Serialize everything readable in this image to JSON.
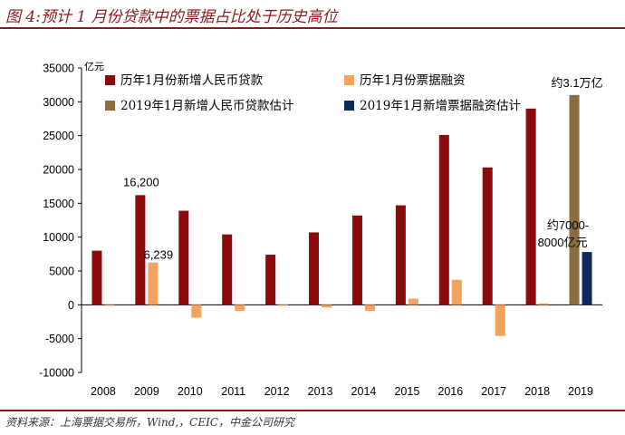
{
  "title": "图 4:预计 1 月份贷款中的票据占比处于历史高位",
  "source": "资料来源：上海票据交易所，Wind,，CEIC，中金公司研究",
  "chart_data": {
    "type": "bar",
    "unit": "亿元",
    "categories": [
      "2008",
      "2009",
      "2010",
      "2011",
      "2012",
      "2013",
      "2014",
      "2015",
      "2016",
      "2017",
      "2018",
      "2019"
    ],
    "ylim": [
      -10000,
      35000
    ],
    "yticks": [
      -10000,
      -5000,
      0,
      5000,
      10000,
      15000,
      20000,
      25000,
      30000,
      35000
    ],
    "legend_position": "top",
    "series": [
      {
        "name": "历年1月份新增人民币贷款",
        "color": "#8b0a0a",
        "values": [
          8000,
          16200,
          13900,
          10400,
          7400,
          10700,
          13200,
          14700,
          25100,
          20300,
          29000,
          null
        ]
      },
      {
        "name": "历年1月份票据融资",
        "color": "#f5a25d",
        "values": [
          100,
          6239,
          -1900,
          -900,
          0,
          -400,
          -900,
          900,
          3700,
          -4600,
          200,
          null
        ]
      },
      {
        "name": "2019年1月新增人民币贷款估计",
        "color": "#8c6d3f",
        "values": [
          null,
          null,
          null,
          null,
          null,
          null,
          null,
          null,
          null,
          null,
          null,
          31000
        ]
      },
      {
        "name": "2019年1月新增票据融资估计",
        "color": "#0d2a5c",
        "values": [
          null,
          null,
          null,
          null,
          null,
          null,
          null,
          null,
          null,
          null,
          null,
          7800
        ]
      }
    ],
    "annotations": [
      {
        "text": "16,200",
        "category": "2009",
        "value": 16200
      },
      {
        "text": "6,239",
        "category": "2009",
        "value": 6239
      },
      {
        "text": "约3.1万亿",
        "category": "2019",
        "value": 31000
      },
      {
        "text": "约7000-",
        "category": "2019",
        "value": 7800
      },
      {
        "text": "8000亿元",
        "category": "2019",
        "value": 7800
      }
    ]
  }
}
